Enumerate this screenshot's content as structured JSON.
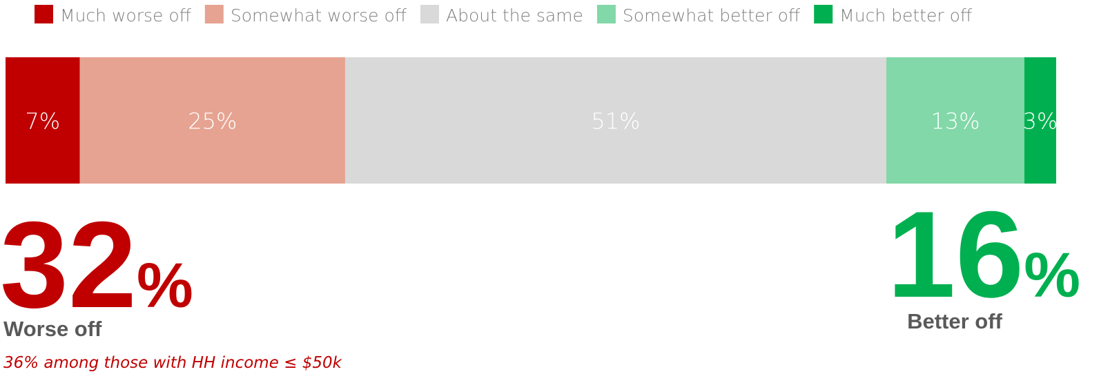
{
  "chart_data": {
    "type": "stacked_bar",
    "xlim": [
      0,
      99
    ],
    "series": [
      {
        "name": "Much worse off",
        "color": "#c00000",
        "values": [
          7
        ],
        "value_labels": [
          "7%"
        ]
      },
      {
        "name": "Somewhat worse off",
        "color": "#e6a391",
        "values": [
          25
        ],
        "value_labels": [
          "25%"
        ]
      },
      {
        "name": "About the same",
        "color": "#d9d9d9",
        "values": [
          51
        ],
        "value_labels": [
          "51%"
        ]
      },
      {
        "name": "Somewhat better off",
        "color": "#82d8a8",
        "values": [
          13
        ],
        "value_labels": [
          "13%"
        ]
      },
      {
        "name": "Much better off",
        "color": "#00b050",
        "values": [
          3
        ],
        "value_labels": [
          "3%"
        ]
      }
    ],
    "annotations": [
      {
        "number": "32",
        "unit": "%",
        "label": "Worse off",
        "color": "#c00000"
      },
      {
        "number": "16",
        "unit": "%",
        "label": "Better off",
        "color": "#00b050"
      }
    ],
    "note": "36% among those with HH income ≤ $50k"
  }
}
